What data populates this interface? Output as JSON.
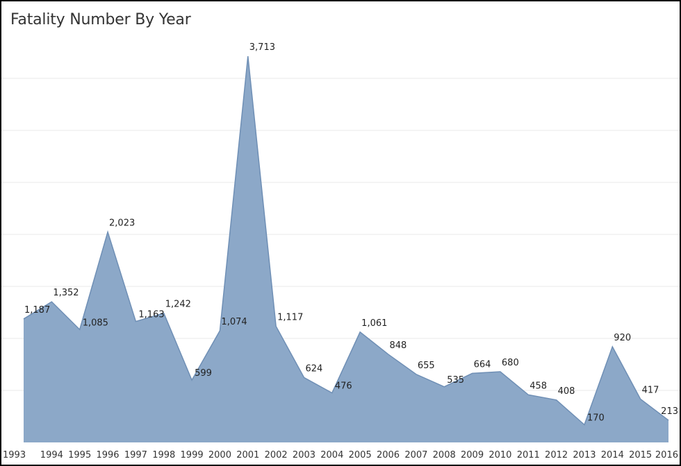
{
  "chart_data": {
    "type": "area",
    "title": "Fatality Number By Year",
    "xlabel": "",
    "ylabel": "",
    "x": [
      "1993",
      "1994",
      "1995",
      "1996",
      "1997",
      "1998",
      "1999",
      "2000",
      "2001",
      "2002",
      "2003",
      "2004",
      "2005",
      "2006",
      "2007",
      "2008",
      "2009",
      "2010",
      "2011",
      "2012",
      "2013",
      "2014",
      "2015",
      "2016"
    ],
    "values": [
      1187,
      1352,
      1085,
      2023,
      1163,
      1242,
      599,
      1074,
      3713,
      1117,
      624,
      476,
      1061,
      848,
      655,
      535,
      664,
      680,
      458,
      408,
      170,
      920,
      417,
      213
    ],
    "data_labels": [
      "1,187",
      "1,352",
      "1,085",
      "2,023",
      "1,163",
      "1,242",
      "599",
      "1,074",
      "3,713",
      "1,117",
      "624",
      "476",
      "1,061",
      "848",
      "655",
      "535",
      "664",
      "680",
      "458",
      "408",
      "170",
      "920",
      "417",
      "213"
    ],
    "ylim": [
      0,
      4000
    ],
    "grid": true,
    "colors": {
      "fill": "#8ca8c8",
      "stroke": "#6f8fb5",
      "grid": "#e8e8e8"
    }
  }
}
